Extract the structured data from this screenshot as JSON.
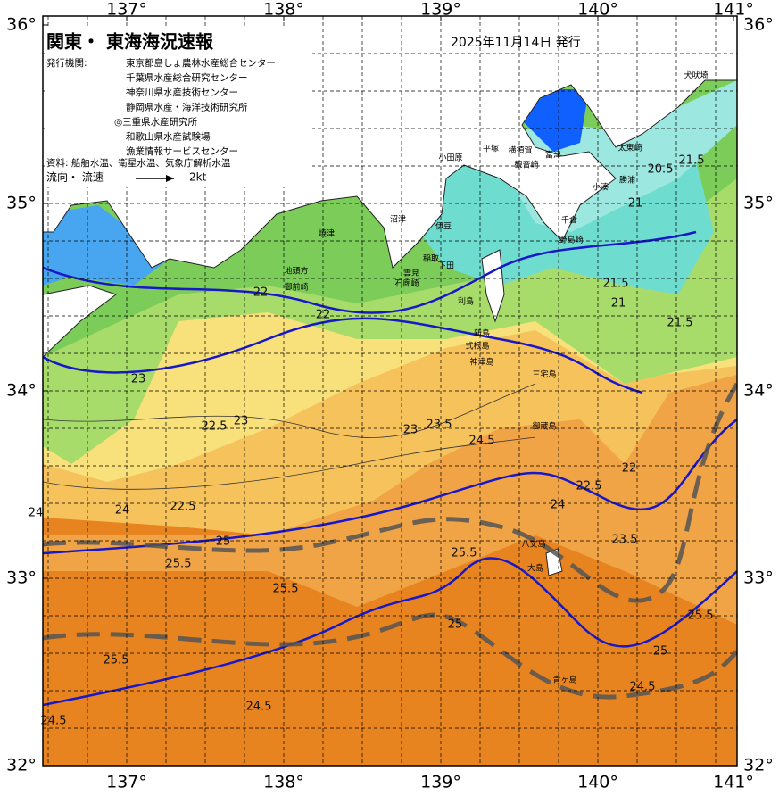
{
  "header": {
    "title": "関東・ 東海海況速報",
    "date": "2025年11月14日 発行",
    "issuer_label": "発行機関:",
    "issuers": [
      "東京都島しょ農林水産総合センター",
      "千葉県水産総合研究センター",
      "神奈川県水産技術センター",
      "静岡県水産・海洋技術研究所",
      "◎三重県水産研究所",
      "和歌山県水産試験場",
      "漁業情報サービスセンター"
    ],
    "source": "資料: 船舶水温、衛星水温、気象庁解析水温",
    "flow_label": "流向・ 流速",
    "flow_scale": "2kt"
  },
  "map": {
    "lon_ticks": [
      {
        "value": 137,
        "label": "137°"
      },
      {
        "value": 138,
        "label": "138°"
      },
      {
        "value": 139,
        "label": "139°"
      },
      {
        "value": 140,
        "label": "140°"
      },
      {
        "value": 141,
        "label": "141°"
      }
    ],
    "lat_ticks": [
      {
        "value": 36,
        "label": "36°"
      },
      {
        "value": 35,
        "label": "35°"
      },
      {
        "value": 34,
        "label": "34°"
      },
      {
        "value": 33,
        "label": "33°"
      },
      {
        "value": 32,
        "label": "32°"
      }
    ],
    "places": [
      "犬吠埼",
      "太東崎",
      "勝浦",
      "小湊",
      "千倉",
      "野島崎",
      "富津",
      "横須賀",
      "観音崎",
      "平塚",
      "小田原",
      "沼津",
      "焼津",
      "伊豆",
      "稲取",
      "下田",
      "石廊崎",
      "雲見",
      "御前崎",
      "地頭方",
      "利島",
      "新島",
      "式根島",
      "神津島",
      "三宅島",
      "御蔵島",
      "大島",
      "八丈島",
      "青ヶ島"
    ],
    "isotherm_labels": [
      "21.5",
      "21",
      "20.5",
      "21.5",
      "21",
      "21.5",
      "22",
      "22",
      "22.5",
      "23",
      "23",
      "23",
      "22.5",
      "23.5",
      "24",
      "24.5",
      "24",
      "25",
      "25.5",
      "25.5",
      "25.5",
      "25",
      "24.5",
      "24.5",
      "25.5",
      "24",
      "23.5",
      "22.5",
      "22",
      "25.5",
      "25",
      "24.5"
    ]
  }
}
